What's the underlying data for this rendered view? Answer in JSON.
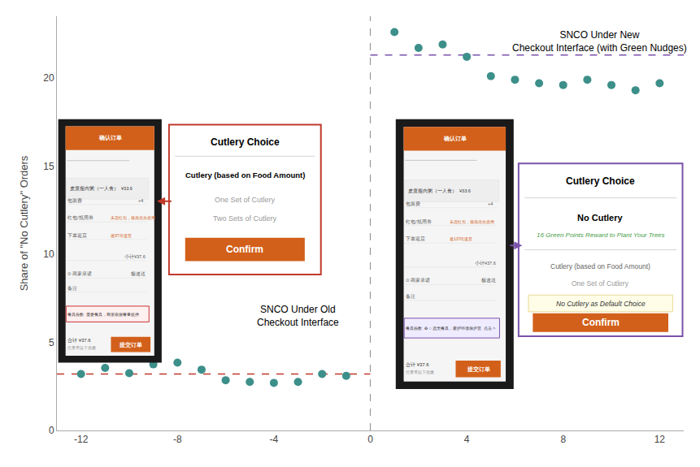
{
  "chart_data": {
    "type": "scatter",
    "ylabel": "Share of \"No Cutlery\" Orders",
    "xlim": [
      -13,
      13
    ],
    "ylim": [
      0,
      23.5
    ],
    "xticks": [
      -12,
      -8,
      -4,
      0,
      4,
      8,
      12
    ],
    "yticks": [
      0,
      5,
      10,
      15,
      20
    ],
    "grid": false,
    "series": [
      {
        "color": "#3d8f8a",
        "marker": "circle",
        "x": [
          -12,
          -11,
          -10,
          -9,
          -8,
          -7,
          -6,
          -5,
          -4,
          -3,
          -2,
          -1
        ],
        "values": [
          3.2,
          3.55,
          3.25,
          3.75,
          3.85,
          3.45,
          2.85,
          2.75,
          2.7,
          2.75,
          3.2,
          3.1
        ]
      },
      {
        "color": "#3d8f8a",
        "marker": "circle",
        "x": [
          1,
          2,
          3,
          4,
          5,
          6,
          7,
          8,
          9,
          10,
          11,
          12
        ],
        "values": [
          22.6,
          21.7,
          21.9,
          21.2,
          20.1,
          19.9,
          19.7,
          19.6,
          19.9,
          19.6,
          19.3,
          19.7
        ]
      }
    ],
    "hlines": [
      {
        "value": 3.2,
        "x": [
          -13,
          0
        ],
        "color": "#c0392b",
        "line_style": "dashed"
      },
      {
        "value": 21.3,
        "x": [
          0,
          13
        ],
        "color": "#7B52AB",
        "line_style": "dashed"
      }
    ],
    "vlines": [
      {
        "value": 0,
        "color": "#999999",
        "line_style": "dashed"
      }
    ],
    "annotations": [
      "SNCO Under Old\nCheckout Interface",
      "SNCO Under New\nCheckout Interface (with Green Nudges)"
    ],
    "popups": [
      {
        "border_color": "#c0392b",
        "title": "Cutlery Choice",
        "lines": [
          "Cutlery (based on Food Amount)",
          "One Set of Cutlery",
          "Two Sets of Cutlery"
        ],
        "colors": [
          "#000000",
          "#999999",
          "#999999"
        ],
        "button": "Confirm",
        "button_color": "#D2601A"
      },
      {
        "border_color": "#7B52AB",
        "title": "Cutlery Choice",
        "lines": [
          "No Cutlery",
          "16 Green Points Reward to Plant Your Trees",
          "Cutlery (based on Food Amount)",
          "One Set of Cutlery",
          "No Cutlery as Default Choice"
        ],
        "colors": [
          "#000000",
          "#4a9e4a",
          "#666666",
          "#999999",
          "#333333"
        ],
        "highlight_color": "#fffde7",
        "button": "Confirm",
        "button_color": "#D2601A"
      }
    ],
    "phones": [
      {
        "header": "确认订单",
        "item": "皮蛋瘦肉粥（一人食）  ¥33.6",
        "rows": [
          [
            "包装费",
            "+4"
          ],
          [
            "红包/抵用券",
            "未选红包，最高优先使用"
          ],
          [
            "下单返豆",
            "返97街道豆"
          ]
        ],
        "subtotal": "小计¥37.6",
        "delivery": [
          "⊙ 商家承诺",
          "极速送"
        ],
        "note": "备注",
        "cutlery": "餐具份数  需要餐具，商家依据餐量提供",
        "cutlery_color": "#cc3333",
        "cutlery_fill": "#fff0f0",
        "total": "合计 ¥37.6",
        "discount": "已享受以下优惠",
        "button": "提交订单",
        "color": "#D2601A",
        "shell_color": "#1a1a1a",
        "screen_color": "#f5f5f5"
      },
      {
        "header": "确认订单",
        "item": "皮蛋瘦肉粥（一人食）  ¥33.6",
        "rows": [
          [
            "包装费",
            "+4"
          ],
          [
            "红包/抵用券",
            "未选红包，最高优先使用"
          ],
          [
            "下单返豆",
            "返137街道豆"
          ]
        ],
        "subtotal": "小计¥37.6",
        "delivery": [
          "⊙ 商家承诺",
          "极速送"
        ],
        "note": "备注",
        "cutlery": "餐具份数  ♻ ○ 选无餐具，爱护环境保护豆  点击 >",
        "cutlery_color": "#7B52AB",
        "cutlery_fill": "#f0ecff",
        "total": "合计 ¥37.6",
        "discount": "已享受以下优惠",
        "button": "提交订单",
        "color": "#D2601A",
        "shell_color": "#1a1a1a",
        "screen_color": "#f5f5f5"
      }
    ]
  }
}
